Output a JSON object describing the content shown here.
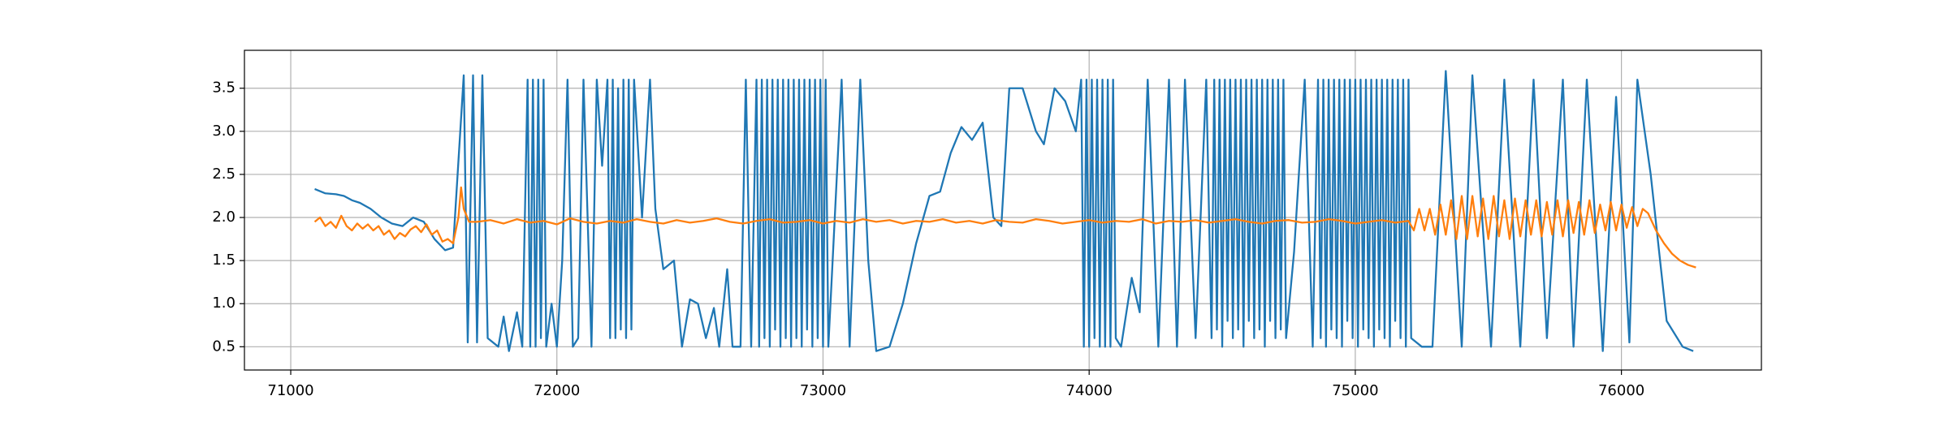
{
  "chart_data": {
    "type": "line",
    "xlim": [
      70826,
      76526
    ],
    "ylim": [
      0.23,
      3.94
    ],
    "xticks": [
      71000,
      72000,
      73000,
      74000,
      75000,
      76000
    ],
    "yticks": [
      0.5,
      {
        "value": 1,
        "label": "1.0"
      },
      1.5,
      {
        "value": 2,
        "label": "2.0"
      },
      2.5,
      {
        "value": 3,
        "label": "3.0"
      },
      3.5
    ],
    "grid": true,
    "series": [
      {
        "color": "#1f77b4",
        "x": [
          71090,
          71130,
          71170,
          71200,
          71230,
          71260,
          71300,
          71340,
          71380,
          71420,
          71460,
          71500,
          71540,
          71580,
          71610,
          71650,
          71665,
          71685,
          71700,
          71720,
          71740,
          71780,
          71800,
          71820,
          71850,
          71870,
          71890,
          71900,
          71910,
          71920,
          71930,
          71940,
          71950,
          71960,
          71980,
          72000,
          72020,
          72040,
          72060,
          72080,
          72100,
          72130,
          72150,
          72170,
          72190,
          72200,
          72210,
          72220,
          72230,
          72240,
          72250,
          72260,
          72270,
          72280,
          72290,
          72320,
          72350,
          72370,
          72400,
          72440,
          72470,
          72500,
          72530,
          72560,
          72590,
          72610,
          72640,
          72660,
          72690,
          72710,
          72730,
          72750,
          72760,
          72770,
          72780,
          72790,
          72800,
          72810,
          72820,
          72830,
          72840,
          72850,
          72860,
          72870,
          72880,
          72890,
          72900,
          72910,
          72920,
          72930,
          72940,
          72950,
          72960,
          72970,
          72980,
          72990,
          73000,
          73010,
          73020,
          73070,
          73100,
          73140,
          73170,
          73200,
          73250,
          73300,
          73350,
          73400,
          73440,
          73480,
          73520,
          73560,
          73600,
          73640,
          73670,
          73700,
          73750,
          73800,
          73830,
          73870,
          73910,
          73950,
          73970,
          73980,
          73990,
          74000,
          74010,
          74020,
          74030,
          74040,
          74050,
          74060,
          74070,
          74080,
          74090,
          74100,
          74120,
          74160,
          74190,
          74220,
          74260,
          74300,
          74330,
          74360,
          74400,
          74440,
          74460,
          74470,
          74480,
          74490,
          74500,
          74510,
          74520,
          74530,
          74540,
          74550,
          74560,
          74570,
          74580,
          74590,
          74600,
          74610,
          74620,
          74630,
          74640,
          74650,
          74660,
          74670,
          74680,
          74690,
          74700,
          74710,
          74720,
          74730,
          74740,
          74770,
          74810,
          74840,
          74860,
          74870,
          74880,
          74890,
          74900,
          74910,
          74920,
          74930,
          74940,
          74950,
          74960,
          74970,
          74980,
          74990,
          75000,
          75010,
          75020,
          75030,
          75040,
          75050,
          75060,
          75070,
          75080,
          75090,
          75100,
          75110,
          75120,
          75130,
          75140,
          75150,
          75160,
          75170,
          75180,
          75190,
          75200,
          75210,
          75250,
          75290,
          75340,
          75400,
          75440,
          75510,
          75560,
          75620,
          75670,
          75720,
          75780,
          75820,
          75870,
          75930,
          75980,
          76030,
          76060,
          76110,
          76170,
          76230,
          76270
        ],
        "values": [
          2.33,
          2.28,
          2.27,
          2.25,
          2.2,
          2.17,
          2.1,
          2.0,
          1.93,
          1.9,
          2.0,
          1.95,
          1.75,
          1.62,
          1.65,
          3.65,
          0.55,
          3.65,
          0.55,
          3.65,
          0.6,
          0.5,
          0.85,
          0.45,
          0.9,
          0.5,
          3.6,
          0.5,
          3.6,
          0.5,
          3.6,
          0.6,
          3.6,
          0.5,
          1.0,
          0.5,
          1.5,
          3.6,
          0.5,
          0.6,
          3.6,
          0.5,
          3.6,
          2.6,
          3.6,
          0.6,
          3.6,
          0.6,
          3.5,
          0.7,
          3.6,
          0.6,
          3.6,
          0.7,
          3.6,
          2.0,
          3.6,
          2.1,
          1.4,
          1.5,
          0.5,
          1.05,
          1.0,
          0.6,
          0.95,
          0.5,
          1.4,
          0.5,
          0.5,
          3.6,
          0.5,
          3.6,
          0.5,
          3.6,
          0.6,
          3.6,
          0.5,
          3.6,
          0.7,
          3.6,
          0.5,
          3.6,
          0.6,
          3.6,
          0.5,
          3.6,
          0.6,
          3.6,
          0.5,
          3.6,
          0.7,
          3.6,
          0.5,
          3.6,
          0.6,
          3.6,
          0.5,
          3.6,
          0.5,
          3.6,
          0.5,
          3.6,
          1.5,
          0.45,
          0.5,
          1.0,
          1.7,
          2.25,
          2.3,
          2.75,
          3.05,
          2.9,
          3.1,
          2.0,
          1.9,
          3.5,
          3.5,
          3.0,
          2.85,
          3.5,
          3.35,
          3.0,
          3.6,
          0.5,
          3.6,
          0.5,
          3.6,
          0.6,
          3.6,
          0.5,
          3.6,
          0.5,
          3.6,
          0.5,
          3.6,
          0.6,
          0.5,
          1.3,
          0.9,
          3.6,
          0.5,
          3.6,
          0.5,
          3.6,
          0.6,
          3.6,
          0.6,
          3.6,
          0.7,
          3.6,
          0.5,
          3.6,
          0.8,
          3.6,
          0.6,
          3.6,
          0.7,
          3.6,
          0.5,
          3.6,
          0.8,
          3.6,
          0.6,
          3.6,
          0.7,
          3.6,
          0.5,
          3.6,
          0.8,
          3.6,
          0.6,
          3.6,
          0.7,
          3.6,
          0.6,
          1.6,
          3.6,
          0.5,
          3.6,
          0.6,
          3.6,
          0.5,
          3.6,
          0.7,
          3.6,
          0.6,
          3.6,
          0.5,
          3.6,
          0.8,
          3.6,
          0.6,
          3.6,
          0.5,
          3.6,
          0.7,
          3.6,
          0.6,
          3.6,
          0.5,
          3.6,
          0.7,
          3.6,
          0.6,
          3.6,
          0.5,
          3.6,
          0.8,
          3.6,
          0.6,
          3.6,
          0.5,
          3.6,
          0.6,
          0.5,
          0.5,
          3.7,
          0.5,
          3.65,
          0.5,
          3.6,
          0.5,
          3.6,
          0.6,
          3.6,
          0.5,
          3.6,
          0.45,
          3.4,
          0.55,
          3.6,
          2.5,
          0.8,
          0.5,
          0.45
        ]
      },
      {
        "color": "#ff7f0e",
        "x": [
          71090,
          71110,
          71130,
          71150,
          71170,
          71190,
          71210,
          71230,
          71250,
          71270,
          71290,
          71310,
          71330,
          71350,
          71370,
          71390,
          71410,
          71430,
          71450,
          71470,
          71490,
          71510,
          71530,
          71550,
          71570,
          71590,
          71610,
          71630,
          71640,
          71650,
          71670,
          71700,
          71750,
          71800,
          71850,
          71900,
          71950,
          72000,
          72050,
          72100,
          72150,
          72200,
          72250,
          72300,
          72350,
          72400,
          72450,
          72500,
          72550,
          72600,
          72650,
          72700,
          72750,
          72800,
          72850,
          72900,
          72950,
          73000,
          73050,
          73100,
          73150,
          73200,
          73250,
          73300,
          73350,
          73400,
          73450,
          73500,
          73550,
          73600,
          73650,
          73700,
          73750,
          73800,
          73850,
          73900,
          73950,
          74000,
          74050,
          74100,
          74150,
          74200,
          74250,
          74300,
          74350,
          74400,
          74450,
          74500,
          74550,
          74600,
          74650,
          74700,
          74750,
          74800,
          74850,
          74900,
          74950,
          75000,
          75050,
          75100,
          75150,
          75200,
          75220,
          75240,
          75260,
          75280,
          75300,
          75320,
          75340,
          75360,
          75380,
          75400,
          75420,
          75440,
          75460,
          75480,
          75500,
          75520,
          75540,
          75560,
          75580,
          75600,
          75620,
          75640,
          75660,
          75680,
          75700,
          75720,
          75740,
          75760,
          75780,
          75800,
          75820,
          75840,
          75860,
          75880,
          75900,
          75920,
          75940,
          75960,
          75980,
          76000,
          76020,
          76040,
          76060,
          76080,
          76100,
          76130,
          76160,
          76190,
          76220,
          76250,
          76280
        ],
        "values": [
          1.95,
          2.0,
          1.9,
          1.95,
          1.88,
          2.02,
          1.9,
          1.85,
          1.93,
          1.87,
          1.92,
          1.85,
          1.9,
          1.8,
          1.85,
          1.75,
          1.82,
          1.78,
          1.86,
          1.9,
          1.83,
          1.92,
          1.8,
          1.85,
          1.72,
          1.75,
          1.7,
          2.0,
          2.35,
          2.1,
          1.95,
          1.95,
          1.97,
          1.93,
          1.98,
          1.94,
          1.96,
          1.92,
          1.99,
          1.95,
          1.93,
          1.96,
          1.94,
          1.98,
          1.95,
          1.93,
          1.97,
          1.94,
          1.96,
          1.99,
          1.95,
          1.93,
          1.96,
          1.98,
          1.94,
          1.95,
          1.97,
          1.93,
          1.96,
          1.94,
          1.98,
          1.95,
          1.97,
          1.93,
          1.96,
          1.95,
          1.98,
          1.94,
          1.96,
          1.93,
          1.97,
          1.95,
          1.94,
          1.98,
          1.96,
          1.93,
          1.95,
          1.97,
          1.94,
          1.96,
          1.95,
          1.98,
          1.93,
          1.96,
          1.95,
          1.97,
          1.94,
          1.96,
          1.98,
          1.95,
          1.93,
          1.96,
          1.97,
          1.94,
          1.95,
          1.98,
          1.96,
          1.93,
          1.95,
          1.97,
          1.94,
          1.96,
          1.85,
          2.1,
          1.85,
          2.1,
          1.8,
          2.15,
          1.8,
          2.2,
          1.75,
          2.25,
          1.75,
          2.25,
          1.78,
          2.22,
          1.75,
          2.25,
          1.78,
          2.2,
          1.75,
          2.22,
          1.78,
          2.2,
          1.8,
          2.2,
          1.78,
          2.18,
          1.8,
          2.2,
          1.78,
          2.2,
          1.82,
          2.18,
          1.8,
          2.2,
          1.82,
          2.15,
          1.85,
          2.18,
          1.85,
          2.15,
          1.88,
          2.12,
          1.9,
          2.1,
          2.05,
          1.85,
          1.7,
          1.58,
          1.5,
          1.45,
          1.42
        ]
      }
    ]
  }
}
